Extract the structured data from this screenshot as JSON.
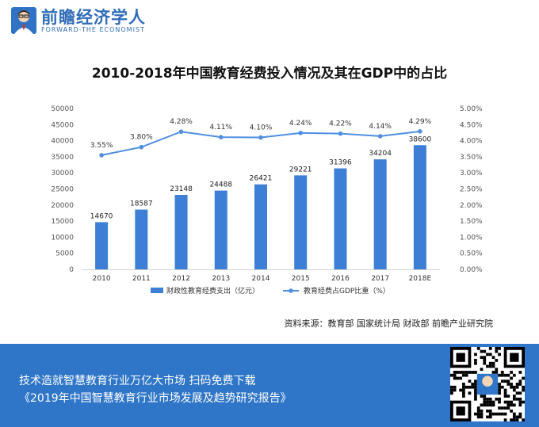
{
  "header": {
    "brand_cn": "前瞻经济学人",
    "brand_en": "FORWARD-THE ECONOMIST"
  },
  "colors": {
    "brand_blue": "#2f76c8",
    "bar_blue": "#3d7fd6",
    "line_blue": "#4f8fe0"
  },
  "chart_data": {
    "type": "bar",
    "title": "2010-2018年中国教育经费投入情况及其在GDP中的占比",
    "categories": [
      "2010",
      "2011",
      "2012",
      "2013",
      "2014",
      "2015",
      "2016",
      "2017",
      "2018E"
    ],
    "series": [
      {
        "name": "财政性教育经费支出（亿元）",
        "type": "bar",
        "axis": "left",
        "values": [
          14670,
          18587,
          23148,
          24488,
          26421,
          29221,
          31396,
          34204,
          38600
        ],
        "labels": [
          "14670",
          "18587",
          "23148",
          "24488",
          "26421",
          "29221",
          "31396",
          "34204",
          "38600"
        ]
      },
      {
        "name": "教育经费占GDP比重（%）",
        "type": "line",
        "axis": "right",
        "values": [
          3.55,
          3.8,
          4.28,
          4.11,
          4.1,
          4.24,
          4.22,
          4.14,
          4.29
        ],
        "labels": [
          "3.55%",
          "3.80%",
          "4.28%",
          "4.11%",
          "4.10%",
          "4.24%",
          "4.22%",
          "4.14%",
          "4.29%"
        ]
      }
    ],
    "ylim_left": [
      0,
      50000
    ],
    "yticks_left": [
      "0",
      "5000",
      "10000",
      "15000",
      "20000",
      "25000",
      "30000",
      "35000",
      "40000",
      "45000",
      "50000"
    ],
    "ylim_right": [
      0,
      5
    ],
    "yticks_right": [
      "0.00%",
      "0.50%",
      "1.00%",
      "1.50%",
      "2.00%",
      "2.50%",
      "3.00%",
      "3.50%",
      "4.00%",
      "4.50%",
      "5.00%"
    ],
    "grid": false,
    "legend": "bottom"
  },
  "source": "资料来源：教育部 国家统计局 财政部 前瞻产业研究院",
  "footer": {
    "line1": "技术造就智慧教育行业万亿大市场    扫码免费下载",
    "line2": "《2019年中国智慧教育行业市场发展及趋势研究报告》"
  }
}
